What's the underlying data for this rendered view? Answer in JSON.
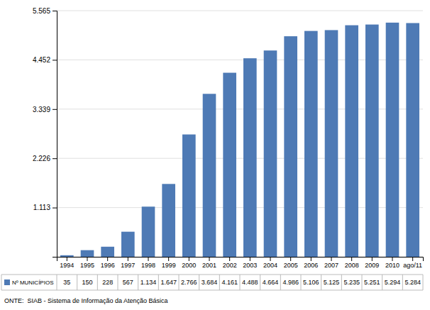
{
  "chart_data": {
    "type": "bar",
    "categories": [
      "1994",
      "1995",
      "1996",
      "1997",
      "1998",
      "1999",
      "2000",
      "2001",
      "2002",
      "2003",
      "2004",
      "2005",
      "2006",
      "2007",
      "2008",
      "2009",
      "2010",
      "ago/11"
    ],
    "series": [
      {
        "name": "Nº MUNICÍPIOS",
        "color": "#4e7ab5",
        "values": [
          35,
          150,
          228,
          567,
          1134,
          1647,
          2766,
          3684,
          4161,
          4488,
          4664,
          4986,
          5106,
          5125,
          5235,
          5251,
          5294,
          5284
        ],
        "value_labels": [
          "35",
          "150",
          "228",
          "567",
          "1.134",
          "1.647",
          "2.766",
          "3.684",
          "4.161",
          "4.488",
          "4.664",
          "4.986",
          "5.106",
          "5.125",
          "5.235",
          "5.251",
          "5.294",
          "5.284"
        ]
      }
    ],
    "ylim": [
      0,
      5565
    ],
    "yticks": [
      {
        "value": 0,
        "label": null
      },
      {
        "value": 1113,
        "label": "1.113"
      },
      {
        "value": 2226,
        "label": "2.226"
      },
      {
        "value": 3339,
        "label": "3.339"
      },
      {
        "value": 4452,
        "label": "4.452"
      },
      {
        "value": 5565,
        "label": "5.565"
      }
    ],
    "grid": true,
    "legend": "lower left",
    "annotations": [
      "ONTE:  SIAB - Sistema de Informação da Atenção Básica"
    ]
  }
}
